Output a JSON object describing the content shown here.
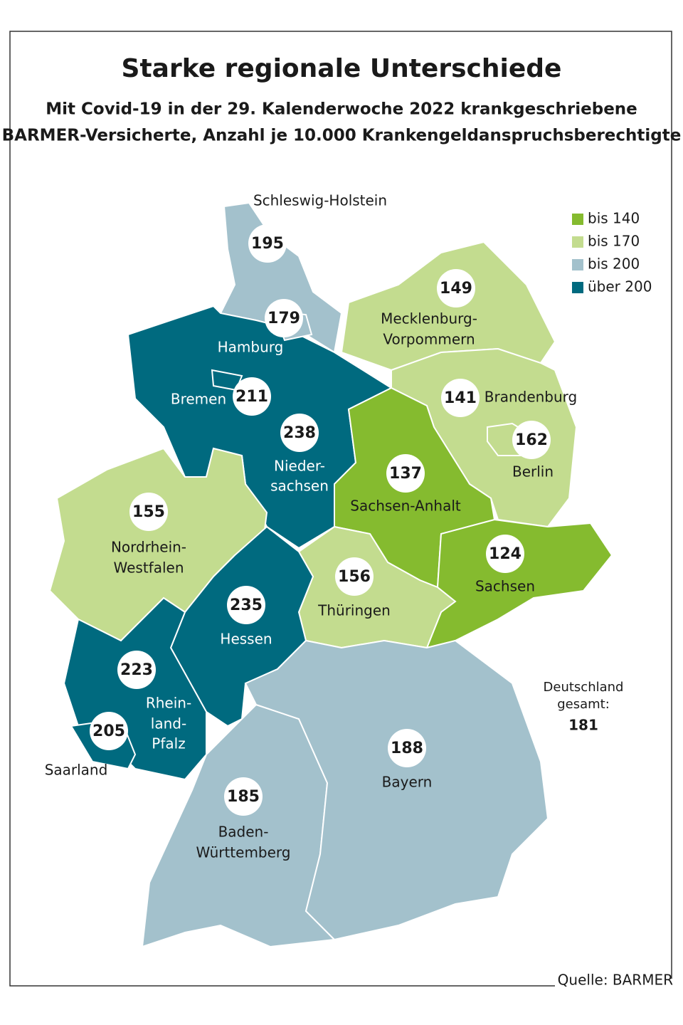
{
  "header": {
    "title": "Starke regionale Unterschiede",
    "subtitle": [
      "Mit Covid-19 in der 29. Kalenderwoche 2022 krankgeschriebene",
      "BARMER-Versicherte, Anzahl je 10.000 Krankengeldanspruchsberechtigte"
    ]
  },
  "legend": [
    {
      "label": "bis 140",
      "color": "#85bb2f"
    },
    {
      "label": "bis 170",
      "color": "#c3dc8f"
    },
    {
      "label": "bis 200",
      "color": "#a3c1cc"
    },
    {
      "label": "über 200",
      "color": "#006a7f"
    }
  ],
  "map": {
    "regions": [
      {
        "name": [
          "Schleswig-Holstein"
        ],
        "value": 195,
        "color": "#a3c1cc"
      },
      {
        "name": [
          "Hamburg"
        ],
        "value": 179,
        "color": "#a3c1cc"
      },
      {
        "name": [
          "Mecklenburg-",
          "Vorpommern"
        ],
        "value": 149,
        "color": "#c3dc8f"
      },
      {
        "name": [
          "Brandenburg"
        ],
        "value": 141,
        "color": "#c3dc8f"
      },
      {
        "name": [
          "Berlin"
        ],
        "value": 162,
        "color": "#c3dc8f"
      },
      {
        "name": [
          "Bremen"
        ],
        "value": 211,
        "color": "#006a7f"
      },
      {
        "name": [
          "Nieder-",
          "sachsen"
        ],
        "value": 238,
        "color": "#006a7f"
      },
      {
        "name": [
          "Sachsen-Anhalt"
        ],
        "value": 137,
        "color": "#85bb2f"
      },
      {
        "name": [
          "Sachsen"
        ],
        "value": 124,
        "color": "#85bb2f"
      },
      {
        "name": [
          "Thüringen"
        ],
        "value": 156,
        "color": "#c3dc8f"
      },
      {
        "name": [
          "Nordrhein-",
          "Westfalen"
        ],
        "value": 155,
        "color": "#c3dc8f"
      },
      {
        "name": [
          "Hessen"
        ],
        "value": 235,
        "color": "#006a7f"
      },
      {
        "name": [
          "Rhein-",
          "land-",
          "Pfalz"
        ],
        "value": 223,
        "color": "#006a7f"
      },
      {
        "name": [
          "Saarland"
        ],
        "value": 205,
        "color": "#006a7f"
      },
      {
        "name": [
          "Baden-",
          "Württemberg"
        ],
        "value": 185,
        "color": "#a3c1cc"
      },
      {
        "name": [
          "Bayern"
        ],
        "value": 188,
        "color": "#a3c1cc"
      }
    ]
  },
  "total": {
    "label": [
      "Deutschland",
      "gesamt:"
    ],
    "value": 181
  },
  "source": "Quelle: BARMER"
}
